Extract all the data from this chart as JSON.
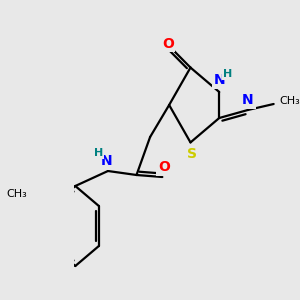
{
  "bg_color": "#e8e8e8",
  "bond_color": "#000000",
  "colors": {
    "O": "#ff0000",
    "N": "#0000ff",
    "S": "#cccc00",
    "H": "#008080",
    "C": "#000000"
  },
  "font_size_atom": 10,
  "font_size_small": 8,
  "line_width": 1.6
}
